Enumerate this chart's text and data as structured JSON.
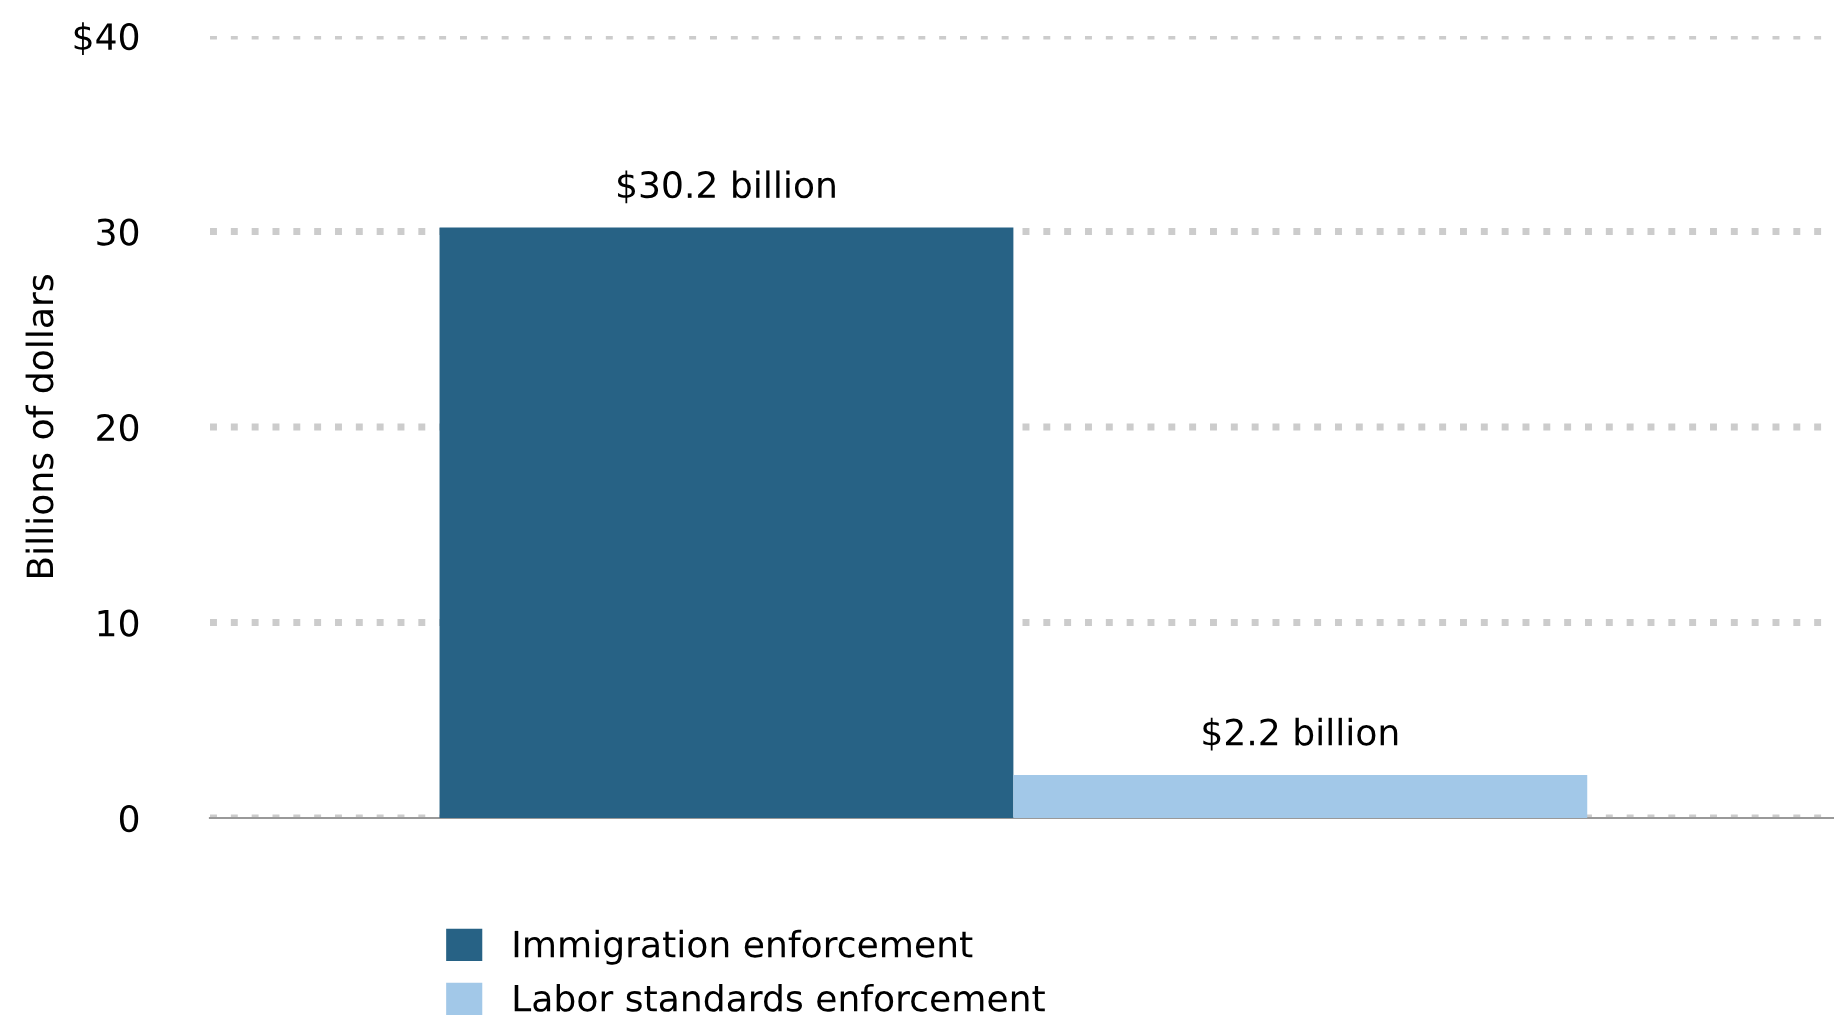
{
  "chart_data": {
    "type": "bar",
    "ylabel": "Billions of dollars",
    "categories": [
      null
    ],
    "series": [
      {
        "name": "Immigration enforcement",
        "color": "#276285",
        "values": [
          30.2
        ],
        "value_labels": [
          "$30.2 billion"
        ]
      },
      {
        "name": "Labor standards enforcement",
        "color": "#a2c8e8",
        "values": [
          2.2
        ],
        "value_labels": [
          "$2.2 billion"
        ]
      }
    ],
    "ylim": [
      0,
      40
    ],
    "yticks": [
      0,
      10,
      20,
      30,
      {
        "value": 40,
        "label": "$40"
      }
    ],
    "grid": "y",
    "legend": "bottom"
  }
}
